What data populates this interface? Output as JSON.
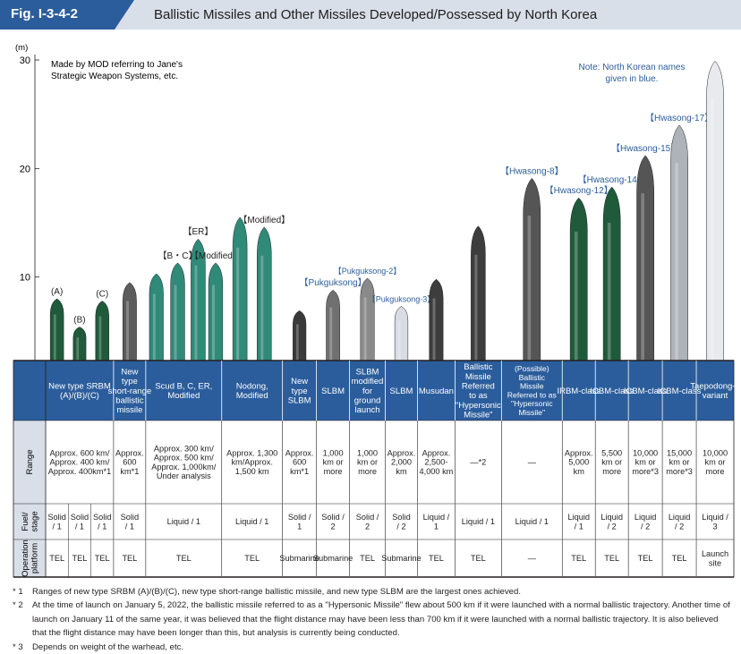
{
  "header": {
    "fig_label": "Fig. I-3-4-2",
    "title": "Ballistic Missiles and Other Missiles Developed/Possessed by North Korea",
    "tab_color": "#2b5d9c"
  },
  "chart_data": {
    "type": "bar",
    "y_unit": "(m)",
    "ylim": [
      0,
      30
    ],
    "yticks": [
      10,
      20,
      30
    ],
    "grid": false,
    "source_note": [
      "Made by MOD referring to Jane's",
      "Strategic Weapon Systems, etc."
    ],
    "name_note": [
      "Note: North Korean names",
      "given in blue."
    ],
    "missiles": [
      {
        "label": "(A)",
        "height": 8.0,
        "color": "#1f5a3b"
      },
      {
        "label": "(B)",
        "height": 5.4,
        "color": "#1f5a3b"
      },
      {
        "label": "(C)",
        "height": 7.8,
        "color": "#1f5a3b"
      },
      {
        "label": "",
        "height": 9.5,
        "color": "#5c5c5c"
      },
      {
        "label": "",
        "height": 10.3,
        "color": "#2f8a78"
      },
      {
        "label": "【B・C】",
        "height": 11.3,
        "color": "#2f8a78"
      },
      {
        "label": "【ER】",
        "height": 13.5,
        "color": "#2f8a78"
      },
      {
        "label": "【Modified】",
        "height": 11.3,
        "color": "#2f8a78"
      },
      {
        "label": "",
        "height": 15.5,
        "color": "#2f8a78"
      },
      {
        "label": "【Modified】",
        "height": 14.6,
        "color": "#2f8a78"
      },
      {
        "label": "",
        "height": 6.9,
        "color": "#3a3a3a"
      },
      {
        "label": "【Pukguksong】",
        "height": 8.8,
        "color": "#707070"
      },
      {
        "label": "【Pukguksong-2】",
        "height": 9.9,
        "color": "#8a8a8a"
      },
      {
        "label": "【Pukguksong-3】",
        "height": 7.3,
        "color": "#d8dce4"
      },
      {
        "label": "",
        "height": 9.8,
        "color": "#3d3d3d"
      },
      {
        "label": "",
        "height": 14.7,
        "color": "#3d3d3d"
      },
      {
        "label": "【Hwasong-8】",
        "height": 19.1,
        "color": "#555555"
      },
      {
        "label": "【Hwasong-12】",
        "height": 17.3,
        "color": "#1f5a3b"
      },
      {
        "label": "【Hwasong-14】",
        "height": 18.3,
        "color": "#1f5a3b"
      },
      {
        "label": "【Hwasong-15】",
        "height": 21.2,
        "color": "#555555"
      },
      {
        "label": "【Hwasong-17】",
        "height": 24.0,
        "color": "#aeb3ba"
      },
      {
        "label": "",
        "height": 29.9,
        "color": "#e8eaee"
      }
    ]
  },
  "table": {
    "row_labels": [
      "Range",
      "Fuel/stage",
      "Operation platform"
    ],
    "header_color": "#2b5d9c",
    "columns": [
      {
        "name": "New type SRBM (A)/(B)/(C)",
        "range": "Approx. 600 km/ Approx. 400 km/ Approx. 400km*1",
        "fuel": [
          "Solid / 1",
          "Solid / 1",
          "Solid / 1"
        ],
        "platform": [
          "TEL",
          "TEL",
          "TEL"
        ]
      },
      {
        "name": "New type short-range ballistic missile",
        "range": "Approx. 600 km*1",
        "fuel": [
          "Solid / 1"
        ],
        "platform": [
          "TEL"
        ]
      },
      {
        "name": "Scud B, C, ER, Modified",
        "range": "Approx. 300 km/ Approx. 500 km/ Approx. 1,000km/ Under analysis",
        "fuel": [
          "Liquid / 1"
        ],
        "platform": [
          "TEL"
        ]
      },
      {
        "name": "Nodong, Modified",
        "range": "Approx. 1,300 km/Approx. 1,500 km",
        "fuel": [
          "Liquid / 1"
        ],
        "platform": [
          "TEL"
        ]
      },
      {
        "name": "New type SLBM",
        "range": "Approx. 600 km*1",
        "fuel": [
          "Solid / 1"
        ],
        "platform": [
          "Submarine"
        ]
      },
      {
        "name": "SLBM",
        "range": "1,000 km or more",
        "fuel": [
          "Solid / 2"
        ],
        "platform": [
          "Submarine"
        ]
      },
      {
        "name": "SLBM modified for ground launch",
        "range": "1,000 km or more",
        "fuel": [
          "Solid / 2"
        ],
        "platform": [
          "TEL"
        ]
      },
      {
        "name": "SLBM",
        "range": "Approx. 2,000 km",
        "fuel": [
          "Solid / 2"
        ],
        "platform": [
          "Submarine"
        ]
      },
      {
        "name": "Musudan",
        "range": "Approx. 2,500- 4,000 km",
        "fuel": [
          "Liquid / 1"
        ],
        "platform": [
          "TEL"
        ]
      },
      {
        "name": "Ballistic Missile Referred to as \"Hypersonic Missile\"",
        "range": "—*2",
        "fuel": [
          "Liquid / 1"
        ],
        "platform": [
          "TEL"
        ]
      },
      {
        "name": "(Possible) Ballistic Missile Referred to as \"Hypersonic Missile\"",
        "range": "—",
        "fuel": [
          "Liquid / 1"
        ],
        "platform": [
          "—"
        ]
      },
      {
        "name": "IRBM-class",
        "range": "Approx. 5,000 km",
        "fuel": [
          "Liquid / 1"
        ],
        "platform": [
          "TEL"
        ]
      },
      {
        "name": "ICBM-class",
        "range": "5,500 km or more",
        "fuel": [
          "Liquid / 2"
        ],
        "platform": [
          "TEL"
        ]
      },
      {
        "name": "ICBM-class",
        "range": "10,000 km or more*3",
        "fuel": [
          "Liquid / 2"
        ],
        "platform": [
          "TEL"
        ]
      },
      {
        "name": "ICBM-class",
        "range": "15,000 km or more*3",
        "fuel": [
          "Liquid / 2"
        ],
        "platform": [
          "TEL"
        ]
      },
      {
        "name": "Taepodong-2 variant",
        "range": "10,000 km or more",
        "fuel": [
          "Liquid / 3"
        ],
        "platform": [
          "Launch site"
        ]
      }
    ]
  },
  "footnotes": [
    {
      "mark": "* 1",
      "text": "Ranges of new type SRBM (A)/(B)/(C), new type short-range ballistic missile, and new type SLBM are the largest ones achieved."
    },
    {
      "mark": "* 2",
      "text": "At the time of launch on January 5, 2022, the ballistic missile referred to as a \"Hypersonic Missile\" flew about 500 km if it were launched with a normal ballistic trajectory. Another time of launch on January 11 of the same year, it was believed that the flight distance may have been less than 700 km if it were launched with a normal ballistic trajectory. It is also believed that the flight distance may have been longer than this, but analysis is currently being conducted."
    },
    {
      "mark": "* 3",
      "text": "Depends on weight of the warhead, etc."
    }
  ]
}
